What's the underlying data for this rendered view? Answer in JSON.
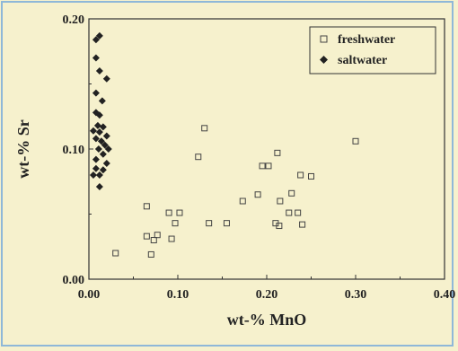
{
  "chart_data": {
    "type": "scatter",
    "xlabel": "wt-% MnO",
    "ylabel": "wt-% Sr",
    "xlim": [
      0.0,
      0.4
    ],
    "ylim": [
      0.0,
      0.2
    ],
    "x_ticks": [
      "0.00",
      "0.10",
      "0.20",
      "0.30",
      "0.40"
    ],
    "y_ticks": [
      "0.00",
      "0.10",
      "0.20"
    ],
    "grid": false,
    "legend_position": "top-right",
    "series": [
      {
        "name": "freshwater",
        "marker": "open-square",
        "color": "#444444",
        "points": [
          [
            0.03,
            0.02
          ],
          [
            0.065,
            0.056
          ],
          [
            0.065,
            0.033
          ],
          [
            0.07,
            0.019
          ],
          [
            0.073,
            0.03
          ],
          [
            0.077,
            0.034
          ],
          [
            0.09,
            0.051
          ],
          [
            0.093,
            0.031
          ],
          [
            0.097,
            0.043
          ],
          [
            0.102,
            0.051
          ],
          [
            0.123,
            0.094
          ],
          [
            0.13,
            0.116
          ],
          [
            0.135,
            0.043
          ],
          [
            0.155,
            0.043
          ],
          [
            0.173,
            0.06
          ],
          [
            0.19,
            0.065
          ],
          [
            0.195,
            0.087
          ],
          [
            0.202,
            0.087
          ],
          [
            0.21,
            0.043
          ],
          [
            0.212,
            0.097
          ],
          [
            0.214,
            0.041
          ],
          [
            0.215,
            0.06
          ],
          [
            0.225,
            0.051
          ],
          [
            0.228,
            0.066
          ],
          [
            0.235,
            0.051
          ],
          [
            0.238,
            0.08
          ],
          [
            0.24,
            0.042
          ],
          [
            0.25,
            0.079
          ],
          [
            0.3,
            0.106
          ]
        ]
      },
      {
        "name": "saltwater",
        "marker": "filled-diamond",
        "color": "#222222",
        "points": [
          [
            0.008,
            0.184
          ],
          [
            0.012,
            0.187
          ],
          [
            0.008,
            0.17
          ],
          [
            0.012,
            0.16
          ],
          [
            0.02,
            0.154
          ],
          [
            0.008,
            0.143
          ],
          [
            0.015,
            0.137
          ],
          [
            0.008,
            0.128
          ],
          [
            0.012,
            0.126
          ],
          [
            0.01,
            0.118
          ],
          [
            0.016,
            0.117
          ],
          [
            0.005,
            0.114
          ],
          [
            0.012,
            0.113
          ],
          [
            0.02,
            0.11
          ],
          [
            0.008,
            0.108
          ],
          [
            0.014,
            0.106
          ],
          [
            0.018,
            0.103
          ],
          [
            0.011,
            0.1
          ],
          [
            0.022,
            0.1
          ],
          [
            0.016,
            0.096
          ],
          [
            0.008,
            0.092
          ],
          [
            0.02,
            0.089
          ],
          [
            0.008,
            0.085
          ],
          [
            0.012,
            0.08
          ],
          [
            0.016,
            0.084
          ],
          [
            0.005,
            0.08
          ],
          [
            0.012,
            0.071
          ]
        ]
      }
    ]
  }
}
